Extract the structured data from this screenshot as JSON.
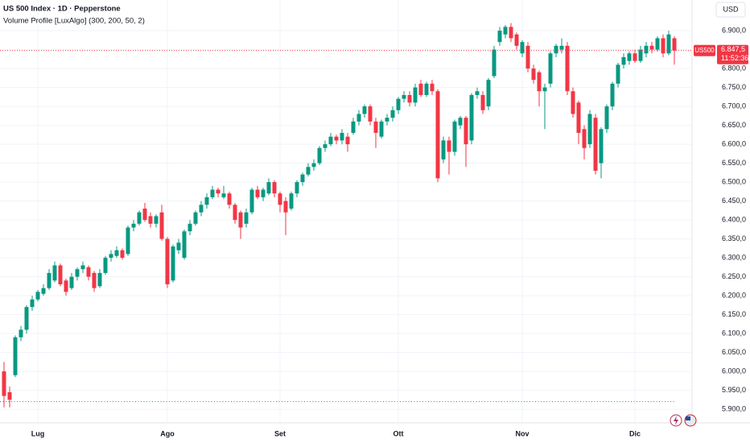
{
  "chart_data": {
    "type": "candlestick",
    "title": "US 500 Index · 1D · Pepperstone",
    "subtitle": "Volume Profile [LuxAlgo] (300, 200, 50, 2)",
    "currency": "USD",
    "categories": [
      null,
      null,
      null,
      null,
      null,
      null,
      "Lug",
      null,
      null,
      null,
      null,
      null,
      null,
      null,
      null,
      null,
      null,
      null,
      null,
      null,
      null,
      null,
      null,
      null,
      null,
      null,
      null,
      null,
      null,
      "Ago",
      null,
      null,
      null,
      null,
      null,
      null,
      null,
      null,
      null,
      null,
      null,
      null,
      null,
      null,
      null,
      null,
      null,
      null,
      null,
      "Set",
      null,
      null,
      null,
      null,
      null,
      null,
      null,
      null,
      null,
      null,
      null,
      null,
      null,
      null,
      null,
      null,
      null,
      null,
      null,
      null,
      "Ott",
      null,
      null,
      null,
      null,
      null,
      null,
      null,
      null,
      null,
      null,
      null,
      null,
      null,
      null,
      null,
      null,
      null,
      null,
      null,
      null,
      null,
      "Nov",
      null,
      null,
      null,
      null,
      null,
      null,
      null,
      null,
      null,
      null,
      null,
      null,
      null,
      null,
      null,
      null,
      null,
      null,
      null,
      "Dic",
      null,
      null,
      null,
      null,
      null,
      null,
      null
    ],
    "series": [
      {
        "name": "US500",
        "up_color": "#089981",
        "down_color": "#f23645",
        "open": [
          6000,
          5945,
          5990,
          6090,
          6110,
          6170,
          6190,
          6205,
          6220,
          6240,
          6280,
          6240,
          6220,
          6250,
          6270,
          6275,
          6260,
          6225,
          6260,
          6300,
          6305,
          6320,
          6310,
          6380,
          6390,
          6430,
          6410,
          6390,
          6420,
          6350,
          6240,
          6320,
          6300,
          6370,
          6390,
          6420,
          6440,
          6460,
          6480,
          6460,
          6470,
          6440,
          6420,
          6390,
          6420,
          6480,
          6460,
          6470,
          6500,
          6470,
          6450,
          6430,
          6470,
          6500,
          6520,
          6540,
          6550,
          6590,
          6600,
          6620,
          6610,
          6620,
          6630,
          6660,
          6680,
          6700,
          6660,
          6620,
          6660,
          6670,
          6690,
          6720,
          6730,
          6710,
          6760,
          6730,
          6760,
          6740,
          6560,
          6610,
          6580,
          6650,
          6670,
          6610,
          6730,
          6730,
          6700,
          6780,
          6870,
          6890,
          6910,
          6890,
          6840,
          6860,
          6800,
          6790,
          6740,
          6760,
          6840,
          6850,
          6860,
          6740,
          6710,
          6640,
          6600,
          6670,
          6550,
          6640,
          6700,
          6760,
          6810,
          6820,
          6840,
          6820,
          6840,
          6860,
          6850,
          6880,
          6840,
          6880
        ],
        "high": [
          6025,
          5960,
          6095,
          6120,
          6175,
          6200,
          6215,
          6230,
          6270,
          6290,
          6285,
          6245,
          6260,
          6275,
          6290,
          6280,
          6265,
          6270,
          6305,
          6320,
          6330,
          6325,
          6385,
          6400,
          6425,
          6445,
          6420,
          6415,
          6440,
          6355,
          6335,
          6350,
          6375,
          6400,
          6425,
          6450,
          6470,
          6490,
          6485,
          6490,
          6475,
          6445,
          6425,
          6430,
          6485,
          6490,
          6485,
          6510,
          6505,
          6475,
          6460,
          6475,
          6505,
          6525,
          6550,
          6560,
          6595,
          6610,
          6630,
          6625,
          6640,
          6630,
          6670,
          6690,
          6705,
          6705,
          6670,
          6665,
          6680,
          6700,
          6725,
          6740,
          6740,
          6760,
          6770,
          6765,
          6770,
          6745,
          6620,
          6620,
          6665,
          6675,
          6675,
          6735,
          6750,
          6740,
          6775,
          6860,
          6910,
          6915,
          6920,
          6895,
          6875,
          6870,
          6810,
          6795,
          6760,
          6845,
          6865,
          6880,
          6870,
          6750,
          6715,
          6650,
          6690,
          6680,
          6645,
          6705,
          6765,
          6815,
          6840,
          6845,
          6850,
          6860,
          6870,
          6870,
          6885,
          6890,
          6900,
          6885
        ],
        "low": [
          5905,
          5905,
          5985,
          6080,
          6100,
          6160,
          6185,
          6200,
          6215,
          6235,
          6225,
          6200,
          6215,
          6240,
          6260,
          6240,
          6210,
          6220,
          6255,
          6290,
          6300,
          6295,
          6305,
          6370,
          6385,
          6395,
          6380,
          6380,
          6345,
          6220,
          6235,
          6310,
          6295,
          6360,
          6385,
          6410,
          6430,
          6455,
          6460,
          6455,
          6430,
          6390,
          6350,
          6380,
          6415,
          6455,
          6450,
          6465,
          6460,
          6420,
          6360,
          6425,
          6460,
          6490,
          6515,
          6530,
          6545,
          6580,
          6595,
          6600,
          6600,
          6580,
          6625,
          6650,
          6670,
          6650,
          6590,
          6615,
          6650,
          6660,
          6680,
          6710,
          6700,
          6700,
          6725,
          6725,
          6730,
          6500,
          6550,
          6520,
          6570,
          6640,
          6540,
          6600,
          6720,
          6680,
          6690,
          6775,
          6860,
          6880,
          6870,
          6850,
          6830,
          6790,
          6760,
          6700,
          6640,
          6750,
          6830,
          6840,
          6730,
          6670,
          6600,
          6560,
          6590,
          6520,
          6510,
          6630,
          6690,
          6750,
          6800,
          6810,
          6815,
          6815,
          6830,
          6840,
          6845,
          6830,
          6835,
          6810
        ],
        "close": [
          5935,
          5925,
          6090,
          6110,
          6170,
          6190,
          6210,
          6220,
          6260,
          6280,
          6230,
          6210,
          6250,
          6270,
          6280,
          6250,
          6220,
          6260,
          6300,
          6310,
          6320,
          6300,
          6380,
          6390,
          6420,
          6400,
          6390,
          6410,
          6350,
          6230,
          6330,
          6340,
          6370,
          6390,
          6420,
          6440,
          6460,
          6480,
          6470,
          6470,
          6440,
          6400,
          6380,
          6420,
          6480,
          6460,
          6480,
          6500,
          6470,
          6440,
          6420,
          6470,
          6500,
          6520,
          6540,
          6550,
          6590,
          6600,
          6620,
          6610,
          6630,
          6600,
          6660,
          6680,
          6700,
          6660,
          6630,
          6660,
          6670,
          6690,
          6720,
          6730,
          6710,
          6750,
          6730,
          6760,
          6740,
          6510,
          6610,
          6580,
          6660,
          6670,
          6600,
          6730,
          6740,
          6690,
          6770,
          6850,
          6900,
          6910,
          6880,
          6860,
          6870,
          6800,
          6770,
          6740,
          6750,
          6840,
          6860,
          6860,
          6740,
          6680,
          6630,
          6590,
          6680,
          6530,
          6640,
          6700,
          6760,
          6810,
          6830,
          6840,
          6820,
          6850,
          6860,
          6850,
          6880,
          6840,
          6890,
          6847.5
        ]
      }
    ],
    "last_price_label": "6.847,5",
    "countdown": "11:52:36",
    "poc_level": 5920,
    "poc_color": "#089981",
    "ylim": [
      5864,
      6981
    ],
    "yticks": [
      {
        "value": 5900,
        "label": "5.900,0"
      },
      {
        "value": 5950,
        "label": "5.950,0"
      },
      {
        "value": 6000,
        "label": "6.000,0"
      },
      {
        "value": 6050,
        "label": "6.050,0"
      },
      {
        "value": 6100,
        "label": "6.100,0"
      },
      {
        "value": 6150,
        "label": "6.150,0"
      },
      {
        "value": 6200,
        "label": "6.200,0"
      },
      {
        "value": 6250,
        "label": "6.250,0"
      },
      {
        "value": 6300,
        "label": "6.300,0"
      },
      {
        "value": 6350,
        "label": "6.350,0"
      },
      {
        "value": 6400,
        "label": "6.400,0"
      },
      {
        "value": 6450,
        "label": "6.450,0"
      },
      {
        "value": 6500,
        "label": "6.500,0"
      },
      {
        "value": 6550,
        "label": "6.550,0"
      },
      {
        "value": 6600,
        "label": "6.600,0"
      },
      {
        "value": 6650,
        "label": "6.650,0"
      },
      {
        "value": 6700,
        "label": "6.700,0"
      },
      {
        "value": 6750,
        "label": "6.750,0"
      },
      {
        "value": 6800,
        "label": "6.800,0"
      },
      {
        "value": 6850,
        "label": "6.850,0"
      },
      {
        "value": 6900,
        "label": "6.900,0"
      }
    ],
    "grid": true
  }
}
